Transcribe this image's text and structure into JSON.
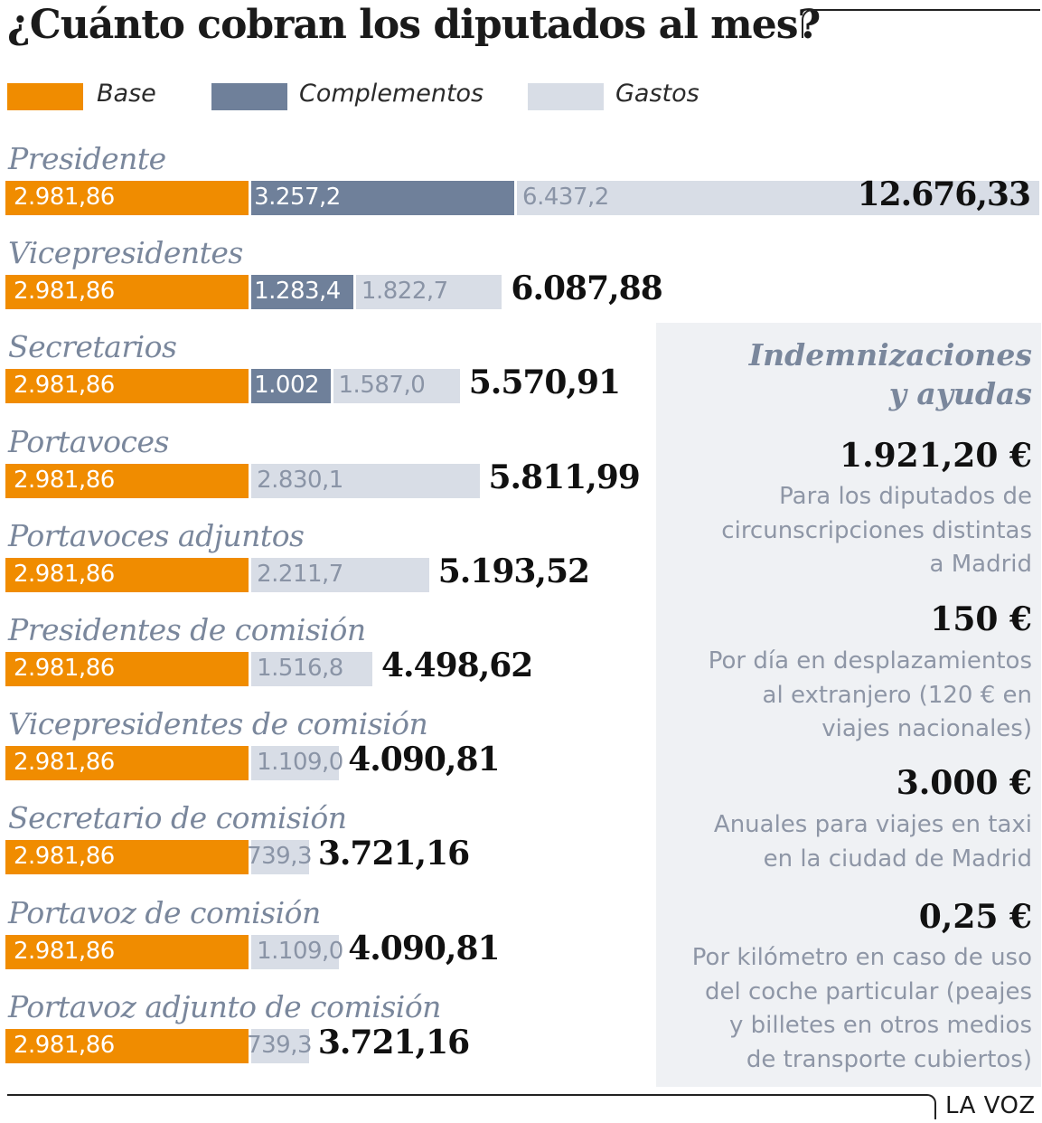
{
  "title": "¿Cuánto cobran los diputados al mes?",
  "colors": {
    "base": "#f08c00",
    "complementos": "#6f809a",
    "gastos": "#d8dde6",
    "label": "#7a879c"
  },
  "legend": [
    {
      "name": "base",
      "label": "Base"
    },
    {
      "name": "complementos",
      "label": "Complementos"
    },
    {
      "name": "gastos",
      "label": "Gastos"
    }
  ],
  "chart_data": {
    "type": "bar",
    "orientation": "horizontal",
    "stacked": true,
    "title": "¿Cuánto cobran los diputados al mes?",
    "unit": "euros",
    "xlim": [
      0,
      12676.33
    ],
    "series_names": [
      "Base",
      "Complementos",
      "Gastos"
    ],
    "categories": [
      "Presidente",
      "Vicepresidentes",
      "Secretarios",
      "Portavoces",
      "Portavoces adjuntos",
      "Presidentes de comisión",
      "Vicepresidentes de comisión",
      "Secretario de comisión",
      "Portavoz de comisión",
      "Portavoz adjunto de comisión"
    ],
    "rows": [
      {
        "label": "Presidente",
        "base": 2981.86,
        "base_label": "2.981,86",
        "comp": 3257.2,
        "comp_label": "3.257,2",
        "gastos": 6437.2,
        "gastos_label": "6.437,2",
        "total": "12.676,33"
      },
      {
        "label": "Vicepresidentes",
        "base": 2981.86,
        "base_label": "2.981,86",
        "comp": 1283.4,
        "comp_label": "1.283,4",
        "gastos": 1822.7,
        "gastos_label": "1.822,7",
        "total": "6.087,88"
      },
      {
        "label": "Secretarios",
        "base": 2981.86,
        "base_label": "2.981,86",
        "comp": 1002,
        "comp_label": "1.002",
        "gastos": 1587.0,
        "gastos_label": "1.587,0",
        "total": "5.570,91"
      },
      {
        "label": "Portavoces",
        "base": 2981.86,
        "base_label": "2.981,86",
        "comp": 0,
        "comp_label": "",
        "gastos": 2830.1,
        "gastos_label": "2.830,1",
        "total": "5.811,99"
      },
      {
        "label": "Portavoces adjuntos",
        "base": 2981.86,
        "base_label": "2.981,86",
        "comp": 0,
        "comp_label": "",
        "gastos": 2211.7,
        "gastos_label": "2.211,7",
        "total": "5.193,52"
      },
      {
        "label": "Presidentes de comisión",
        "base": 2981.86,
        "base_label": "2.981,86",
        "comp": 0,
        "comp_label": "",
        "gastos": 1516.8,
        "gastos_label": "1.516,8",
        "total": "4.498,62"
      },
      {
        "label": "Vicepresidentes de comisión",
        "base": 2981.86,
        "base_label": "2.981,86",
        "comp": 0,
        "comp_label": "",
        "gastos": 1109.0,
        "gastos_label": "1.109,0",
        "total": "4.090,81"
      },
      {
        "label": "Secretario de comisión",
        "base": 2981.86,
        "base_label": "2.981,86",
        "comp": 0,
        "comp_label": "",
        "gastos": 739.3,
        "gastos_label": "739,3",
        "total": "3.721,16"
      },
      {
        "label": "Portavoz de comisión",
        "base": 2981.86,
        "base_label": "2.981,86",
        "comp": 0,
        "comp_label": "",
        "gastos": 1109.0,
        "gastos_label": "1.109,0",
        "total": "4.090,81"
      },
      {
        "label": "Portavoz adjunto de comisión",
        "base": 2981.86,
        "base_label": "2.981,86",
        "comp": 0,
        "comp_label": "",
        "gastos": 739.3,
        "gastos_label": "739,3",
        "total": "3.721,16"
      }
    ]
  },
  "panel": {
    "title_line1": "Indemnizaciones",
    "title_line2": "y ayudas",
    "items": [
      {
        "amount": "1.921,20 €",
        "lines": [
          "Para los diputados de",
          "circunscripciones distintas",
          "a Madrid"
        ]
      },
      {
        "amount": "150 €",
        "lines": [
          "Por día en desplazamientos",
          "al extranjero (120 € en",
          "viajes nacionales)"
        ]
      },
      {
        "amount": "3.000 €",
        "lines": [
          "Anuales para viajes en taxi",
          "en la ciudad de Madrid"
        ]
      },
      {
        "amount": "0,25 €",
        "lines": [
          "Por kilómetro en caso de uso",
          "del coche particular (peajes",
          "y billetes en otros medios",
          "de transporte cubiertos)"
        ]
      }
    ]
  },
  "brand": "LA VOZ"
}
